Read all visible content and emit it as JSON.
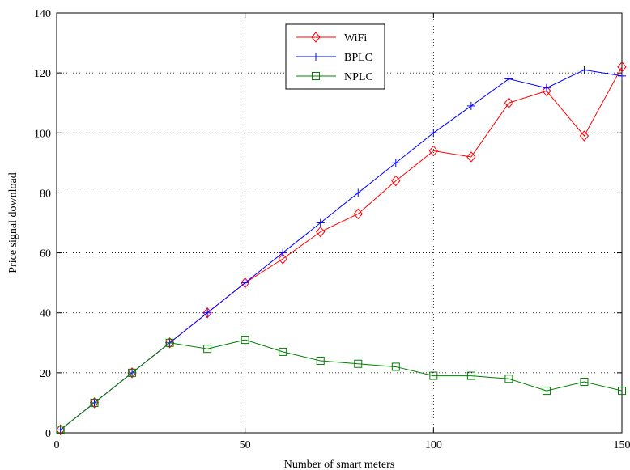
{
  "chart_data": {
    "type": "line",
    "title": "",
    "xlabel": "Number of smart meters",
    "ylabel": "Price signal download",
    "xlim": [
      0,
      150
    ],
    "ylim": [
      0,
      140
    ],
    "xticks": [
      0,
      50,
      100,
      150
    ],
    "yticks": [
      0,
      20,
      40,
      60,
      80,
      100,
      120,
      140
    ],
    "grid": true,
    "legend_position": "top-center",
    "series": [
      {
        "name": "WiFi",
        "color": "#ff0000",
        "marker": "diamond",
        "x": [
          1,
          10,
          20,
          30,
          40,
          50,
          60,
          70,
          80,
          90,
          100,
          110,
          120,
          130,
          140,
          150
        ],
        "values": [
          1,
          10,
          20,
          30,
          40,
          50,
          58,
          67,
          73,
          84,
          94,
          92,
          110,
          114,
          99,
          122
        ]
      },
      {
        "name": "BPLC",
        "color": "#0000ff",
        "marker": "plus",
        "x": [
          1,
          10,
          20,
          30,
          40,
          50,
          60,
          70,
          80,
          90,
          100,
          110,
          120,
          130,
          140,
          150
        ],
        "values": [
          1,
          10,
          20,
          30,
          40,
          50,
          60,
          70,
          80,
          90,
          100,
          109,
          118,
          115,
          121,
          119
        ]
      },
      {
        "name": "NPLC",
        "color": "#008000",
        "marker": "square",
        "x": [
          1,
          10,
          20,
          30,
          40,
          50,
          60,
          70,
          80,
          90,
          100,
          110,
          120,
          130,
          140,
          150
        ],
        "values": [
          1,
          10,
          20,
          30,
          28,
          31,
          27,
          24,
          23,
          22,
          19,
          19,
          18,
          14,
          17,
          14
        ]
      }
    ]
  }
}
